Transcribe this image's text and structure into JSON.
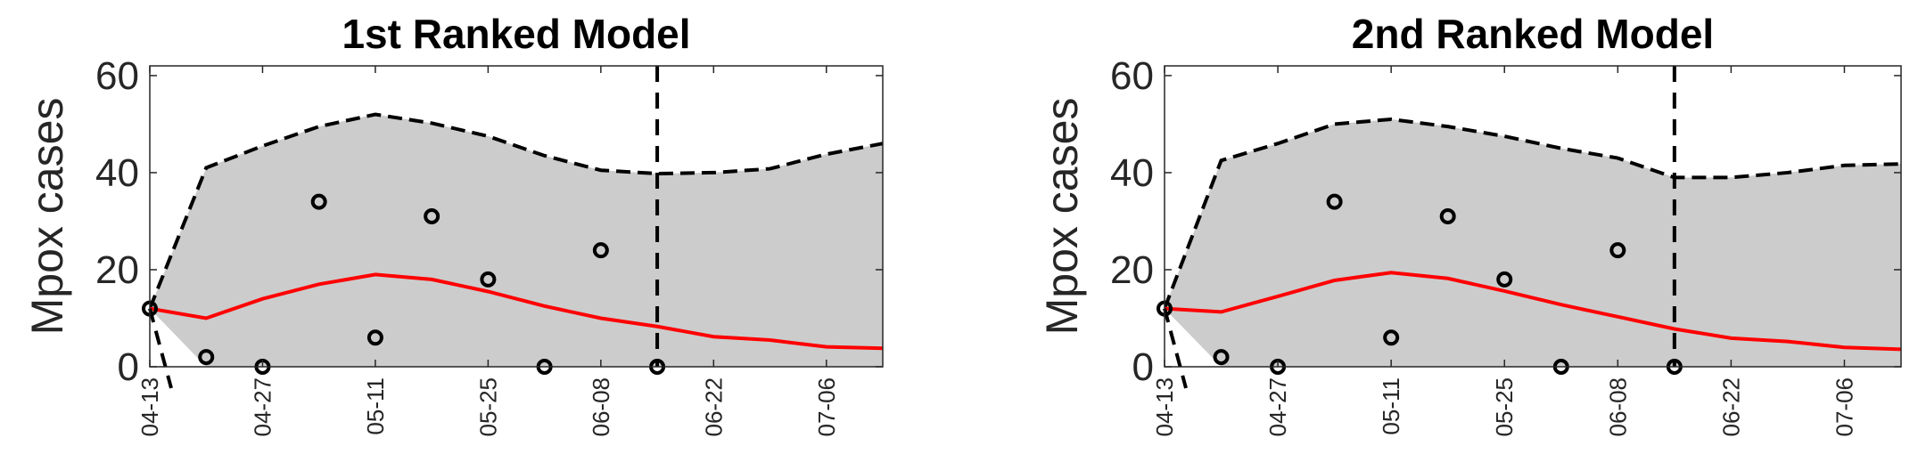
{
  "colors": {
    "band_fill": "#cccccc",
    "median": "#ff0000",
    "bounds": "#000000",
    "points": "#000000",
    "axis": "#262626"
  },
  "chart_data": [
    {
      "type": "line",
      "title": "1st Ranked Model",
      "ylabel": "Mpox cases",
      "xlabel": "",
      "xlim": [
        "2022-04-13",
        "2022-07-13"
      ],
      "ylim": [
        0,
        62
      ],
      "yticks": [
        0,
        20,
        40,
        60
      ],
      "xtick_labels": [
        "04-13",
        "04-27",
        "05-11",
        "05-25",
        "06-08",
        "06-22",
        "07-06"
      ],
      "grid": false,
      "forecast_start": "2022-06-15",
      "x": [
        "2022-04-13",
        "2022-04-20",
        "2022-04-27",
        "2022-05-04",
        "2022-05-11",
        "2022-05-18",
        "2022-05-25",
        "2022-06-01",
        "2022-06-08",
        "2022-06-15",
        "2022-06-22",
        "2022-06-29",
        "2022-07-06",
        "2022-07-13"
      ],
      "series": [
        {
          "role": "median",
          "values": [
            12,
            10,
            14,
            17,
            19,
            18,
            15.5,
            12.5,
            10,
            8.3,
            6.2,
            5.5,
            4.1,
            3.8
          ]
        },
        {
          "role": "upper",
          "values": [
            12,
            41,
            45.5,
            49.5,
            52,
            50.2,
            47.5,
            43.5,
            40.5,
            39.8,
            40,
            40.8,
            43.8,
            46
          ]
        },
        {
          "role": "lower",
          "values": [
            12,
            0,
            0,
            0,
            0,
            0,
            0,
            0,
            0,
            0,
            0,
            0,
            0,
            0
          ]
        }
      ],
      "observed": {
        "x": [
          "2022-04-13",
          "2022-04-20",
          "2022-04-27",
          "2022-05-04",
          "2022-05-11",
          "2022-05-18",
          "2022-05-25",
          "2022-06-01",
          "2022-06-08",
          "2022-06-15"
        ],
        "y": [
          12,
          2,
          0,
          34,
          6,
          31,
          18,
          0,
          24,
          0
        ]
      }
    },
    {
      "type": "line",
      "title": "2nd Ranked Model",
      "ylabel": "Mpox cases",
      "xlabel": "",
      "xlim": [
        "2022-04-13",
        "2022-07-13"
      ],
      "ylim": [
        0,
        62
      ],
      "yticks": [
        0,
        20,
        40,
        60
      ],
      "xtick_labels": [
        "04-13",
        "04-27",
        "05-11",
        "05-25",
        "06-08",
        "06-22",
        "07-06"
      ],
      "grid": false,
      "forecast_start": "2022-06-15",
      "x": [
        "2022-04-13",
        "2022-04-20",
        "2022-04-27",
        "2022-05-04",
        "2022-05-11",
        "2022-05-18",
        "2022-05-25",
        "2022-06-01",
        "2022-06-08",
        "2022-06-15",
        "2022-06-22",
        "2022-06-29",
        "2022-07-06",
        "2022-07-13"
      ],
      "series": [
        {
          "role": "median",
          "values": [
            12,
            11.3,
            14.5,
            17.8,
            19.4,
            18.2,
            15.6,
            12.8,
            10.3,
            7.8,
            5.9,
            5.2,
            4,
            3.6
          ]
        },
        {
          "role": "upper",
          "values": [
            12,
            42.5,
            46,
            50,
            51,
            49.5,
            47.5,
            45,
            43,
            39,
            39,
            40,
            41.5,
            41.8
          ]
        },
        {
          "role": "lower",
          "values": [
            12,
            0,
            0,
            0,
            0,
            0,
            0,
            0,
            0,
            0,
            0,
            0,
            0,
            0
          ]
        }
      ],
      "observed": {
        "x": [
          "2022-04-13",
          "2022-04-20",
          "2022-04-27",
          "2022-05-04",
          "2022-05-11",
          "2022-05-18",
          "2022-05-25",
          "2022-06-01",
          "2022-06-08",
          "2022-06-15"
        ],
        "y": [
          12,
          2,
          0,
          34,
          6,
          31,
          18,
          0,
          24,
          0
        ]
      }
    }
  ]
}
